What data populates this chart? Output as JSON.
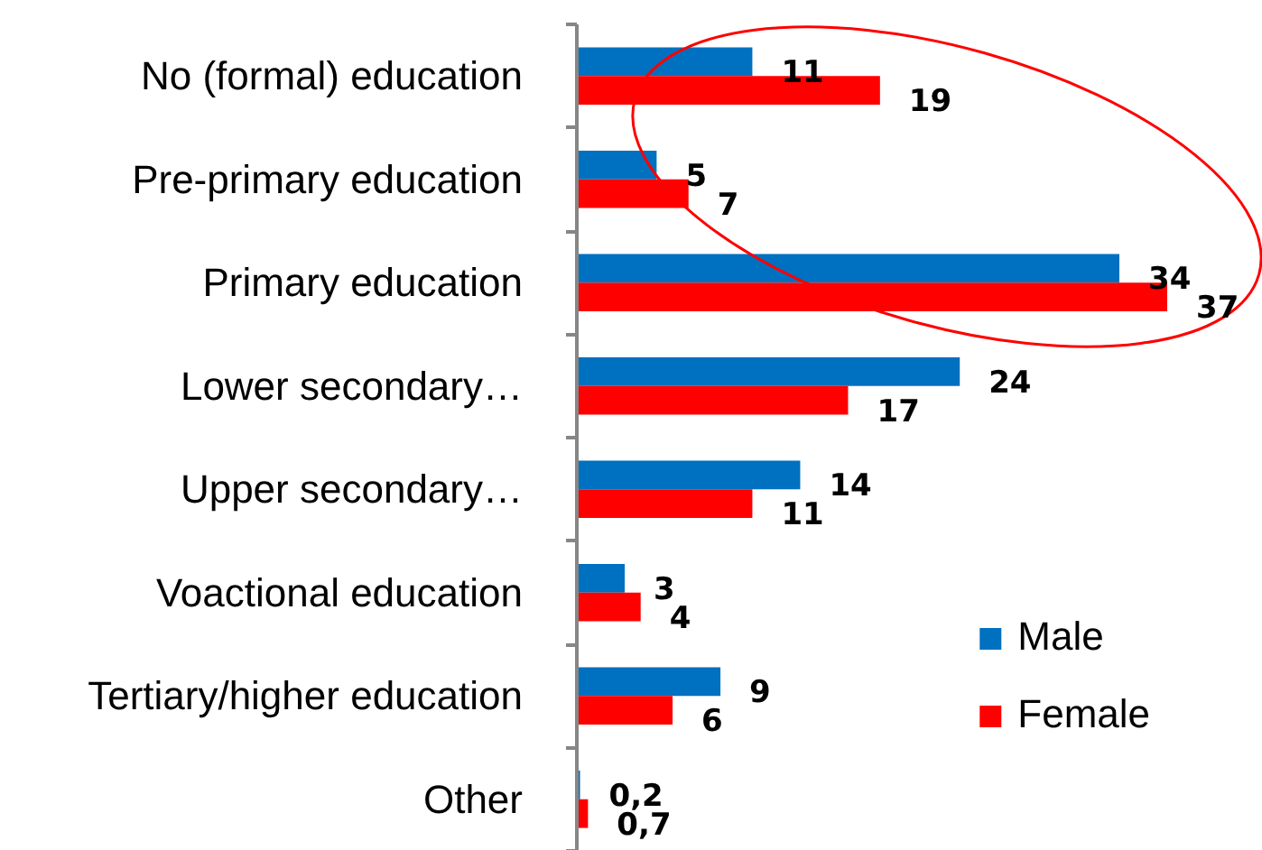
{
  "chart_data": {
    "type": "bar",
    "orientation": "horizontal",
    "categories": [
      "No (formal) education",
      "Pre-primary education",
      "Primary education",
      "Lower secondary…",
      "Upper secondary…",
      "Voactional education",
      "Tertiary/higher education",
      "Other"
    ],
    "series": [
      {
        "name": "Male",
        "color": "#0070c0",
        "values": [
          11,
          5,
          34,
          24,
          14,
          3,
          9,
          0.2
        ],
        "value_labels": [
          "11",
          "5",
          "34",
          "24",
          "14",
          "3",
          "9",
          "0,2"
        ]
      },
      {
        "name": "Female",
        "color": "#ff0000",
        "values": [
          19,
          7,
          37,
          17,
          11,
          4,
          6,
          0.7
        ],
        "value_labels": [
          "19",
          "7",
          "37",
          "17",
          "11",
          "4",
          "6",
          "0,7"
        ]
      }
    ],
    "legend": "bottom right",
    "tick_labels": "y"
  }
}
